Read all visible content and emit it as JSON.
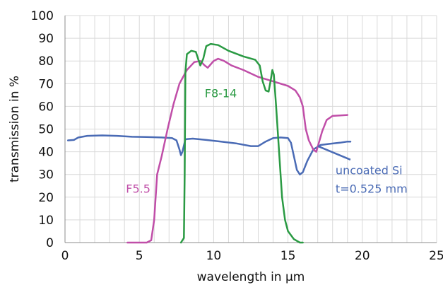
{
  "chart_data": {
    "type": "line",
    "title": "",
    "xlabel": "wavelength in µm",
    "ylabel": "transmission in %",
    "xlim": [
      0,
      25
    ],
    "ylim": [
      0,
      100
    ],
    "xticks": [
      0,
      5,
      10,
      15,
      20,
      25
    ],
    "yticks": [
      0,
      10,
      20,
      30,
      40,
      50,
      60,
      70,
      80,
      90,
      100
    ],
    "grid": true,
    "legend": "none",
    "series": [
      {
        "name": "uncoated Si\nt=0.525 mm",
        "color": "#4a6bb5",
        "points": [
          [
            0.2,
            45
          ],
          [
            0.6,
            45.2
          ],
          [
            0.9,
            46.3
          ],
          [
            1.5,
            47
          ],
          [
            2.5,
            47.2
          ],
          [
            3.5,
            47
          ],
          [
            4.5,
            46.6
          ],
          [
            5.5,
            46.5
          ],
          [
            6.5,
            46.3
          ],
          [
            7.2,
            46
          ],
          [
            7.5,
            45
          ],
          [
            7.7,
            41
          ],
          [
            7.8,
            38.5
          ],
          [
            7.9,
            40
          ],
          [
            8.1,
            45.5
          ],
          [
            8.6,
            45.8
          ],
          [
            9.5,
            45.2
          ],
          [
            10.5,
            44.5
          ],
          [
            11.5,
            43.7
          ],
          [
            12.5,
            42.5
          ],
          [
            13,
            42.5
          ],
          [
            13.5,
            44.5
          ],
          [
            14,
            46
          ],
          [
            14.5,
            46.3
          ],
          [
            15,
            46
          ],
          [
            15.2,
            44
          ],
          [
            15.4,
            38
          ],
          [
            15.6,
            32
          ],
          [
            15.8,
            30
          ],
          [
            16,
            31
          ],
          [
            16.3,
            36
          ],
          [
            16.7,
            41
          ],
          [
            17.2,
            43
          ],
          [
            17.8,
            43.5
          ],
          [
            18.5,
            44
          ],
          [
            19,
            44.5
          ],
          [
            19.2,
            44.5
          ]
        ]
      },
      {
        "name": "F5.5",
        "color": "#c04ea8",
        "points": [
          [
            4.2,
            0
          ],
          [
            5.5,
            0
          ],
          [
            5.8,
            1
          ],
          [
            6,
            10
          ],
          [
            6.2,
            30
          ],
          [
            6.5,
            38
          ],
          [
            6.9,
            50
          ],
          [
            7.3,
            61
          ],
          [
            7.7,
            70
          ],
          [
            8.2,
            76
          ],
          [
            8.7,
            79.5
          ],
          [
            9.1,
            80
          ],
          [
            9.4,
            78
          ],
          [
            9.6,
            77
          ],
          [
            9.8,
            78.5
          ],
          [
            10,
            80
          ],
          [
            10.3,
            81
          ],
          [
            10.7,
            80
          ],
          [
            11.2,
            78
          ],
          [
            12,
            76
          ],
          [
            13,
            73
          ],
          [
            14,
            71
          ],
          [
            15,
            69
          ],
          [
            15.5,
            67
          ],
          [
            15.8,
            64
          ],
          [
            16,
            60
          ],
          [
            16.2,
            50
          ],
          [
            16.4,
            45
          ],
          [
            16.7,
            41
          ],
          [
            16.9,
            40
          ],
          [
            17.3,
            49
          ],
          [
            17.6,
            54
          ],
          [
            18,
            55.8
          ],
          [
            18.5,
            56
          ],
          [
            19,
            56.2
          ]
        ]
      },
      {
        "name": "F8-14",
        "color": "#2a9a43",
        "points": [
          [
            7.8,
            0
          ],
          [
            8,
            2
          ],
          [
            8.05,
            30
          ],
          [
            8.1,
            75
          ],
          [
            8.2,
            83
          ],
          [
            8.5,
            84.5
          ],
          [
            8.8,
            84
          ],
          [
            9,
            80
          ],
          [
            9.1,
            78
          ],
          [
            9.3,
            81
          ],
          [
            9.5,
            86.5
          ],
          [
            9.8,
            87.5
          ],
          [
            10.3,
            87
          ],
          [
            11,
            84.5
          ],
          [
            12,
            82
          ],
          [
            12.8,
            80.5
          ],
          [
            13.1,
            78
          ],
          [
            13.3,
            71
          ],
          [
            13.5,
            67
          ],
          [
            13.7,
            66.5
          ],
          [
            13.85,
            72
          ],
          [
            13.95,
            76
          ],
          [
            14.05,
            74
          ],
          [
            14.2,
            60
          ],
          [
            14.4,
            40
          ],
          [
            14.6,
            20
          ],
          [
            14.8,
            10
          ],
          [
            15,
            5
          ],
          [
            15.4,
            1.5
          ],
          [
            15.8,
            0
          ],
          [
            16,
            0
          ]
        ]
      }
    ],
    "annotations": [
      {
        "text": "F8-14",
        "x": 9.4,
        "y": 64,
        "color": "#2a9a43"
      },
      {
        "text": "F5.5",
        "x": 4.1,
        "y": 22,
        "color": "#c04ea8"
      },
      {
        "text": "uncoated Si",
        "x": 18.2,
        "y": 30,
        "color": "#4a6bb5"
      },
      {
        "text": "t=0.525 mm",
        "x": 18.2,
        "y": 22,
        "color": "#4a6bb5"
      }
    ],
    "leader_line": {
      "color": "#4a6bb5",
      "from": [
        17.0,
        42.5
      ],
      "to": [
        19.2,
        36.5
      ]
    }
  }
}
